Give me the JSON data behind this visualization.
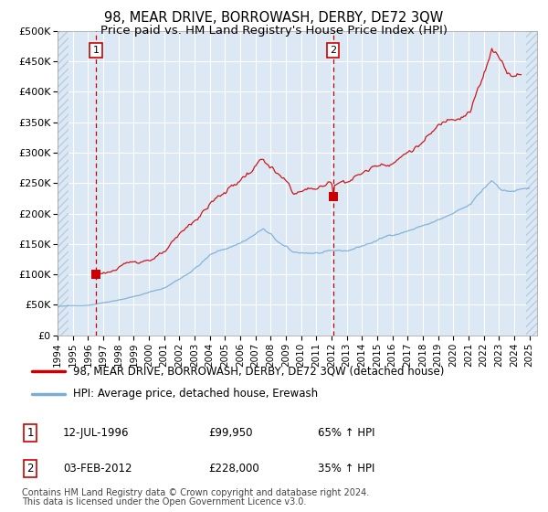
{
  "title": "98, MEAR DRIVE, BORROWASH, DERBY, DE72 3QW",
  "subtitle": "Price paid vs. HM Land Registry's House Price Index (HPI)",
  "title_fontsize": 10.5,
  "subtitle_fontsize": 9.5,
  "figsize": [
    6.0,
    5.6
  ],
  "dpi": 100,
  "xlim": [
    1994.0,
    2025.5
  ],
  "ylim": [
    0,
    500000
  ],
  "yticks": [
    0,
    50000,
    100000,
    150000,
    200000,
    250000,
    300000,
    350000,
    400000,
    450000,
    500000
  ],
  "ytick_labels": [
    "£0",
    "£50K",
    "£100K",
    "£150K",
    "£200K",
    "£250K",
    "£300K",
    "£350K",
    "£400K",
    "£450K",
    "£500K"
  ],
  "xticks": [
    1994,
    1995,
    1996,
    1997,
    1998,
    1999,
    2000,
    2001,
    2002,
    2003,
    2004,
    2005,
    2006,
    2007,
    2008,
    2009,
    2010,
    2011,
    2012,
    2013,
    2014,
    2015,
    2016,
    2017,
    2018,
    2019,
    2020,
    2021,
    2022,
    2023,
    2024,
    2025
  ],
  "background_color": "#dce9f5",
  "grid_color": "#ffffff",
  "marker1_x": 1996.53,
  "marker1_y": 99950,
  "marker1_label": "1",
  "marker1_date": "12-JUL-1996",
  "marker1_price": "£99,950",
  "marker1_hpi": "65% ↑ HPI",
  "marker2_x": 2012.09,
  "marker2_y": 228000,
  "marker2_label": "2",
  "marker2_date": "03-FEB-2012",
  "marker2_price": "£228,000",
  "marker2_hpi": "35% ↑ HPI",
  "red_line_color": "#cc0000",
  "blue_line_color": "#7aadd4",
  "legend_label1": "98, MEAR DRIVE, BORROWASH, DERBY, DE72 3QW (detached house)",
  "legend_label2": "HPI: Average price, detached house, Erewash",
  "footer_text1": "Contains HM Land Registry data © Crown copyright and database right 2024.",
  "footer_text2": "This data is licensed under the Open Government Licence v3.0.",
  "hatch_left_end": 1994.7,
  "hatch_right_start": 2024.8
}
